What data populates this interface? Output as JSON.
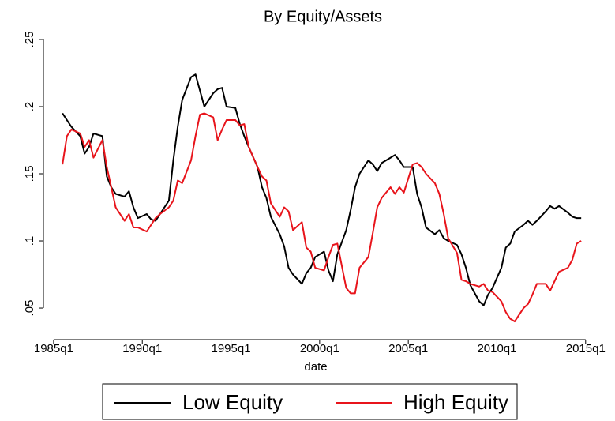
{
  "chart_data": {
    "type": "line",
    "title": "By Equity/Assets",
    "x_label": "date",
    "x": [
      102,
      103,
      104,
      106,
      107,
      108,
      109,
      111,
      112,
      113,
      114,
      116,
      117,
      118,
      119,
      121,
      122,
      123,
      124,
      126,
      127,
      128,
      129,
      131,
      132,
      133,
      134,
      136,
      137,
      138,
      139,
      141,
      142,
      143,
      144,
      146,
      147,
      148,
      149,
      151,
      152,
      153,
      154,
      156,
      157,
      158,
      159,
      161,
      162,
      163,
      164,
      166,
      167,
      168,
      169,
      171,
      172,
      173,
      174,
      176,
      177,
      178,
      179,
      181,
      182,
      183,
      184,
      186,
      187,
      188,
      189,
      191,
      192,
      193,
      194,
      196,
      197,
      198,
      199,
      201,
      202,
      203,
      204,
      206,
      207,
      208,
      209,
      211,
      212,
      213,
      214,
      216,
      217,
      218,
      219
    ],
    "series": [
      {
        "name": "Low Equity",
        "color": "#000000",
        "values": [
          0.195,
          0.19,
          0.185,
          0.178,
          0.165,
          0.17,
          0.18,
          0.178,
          0.148,
          0.14,
          0.135,
          0.133,
          0.137,
          0.125,
          0.117,
          0.12,
          0.116,
          0.115,
          0.12,
          0.13,
          0.16,
          0.185,
          0.205,
          0.222,
          0.224,
          0.212,
          0.2,
          0.21,
          0.213,
          0.214,
          0.2,
          0.199,
          0.187,
          0.178,
          0.17,
          0.155,
          0.14,
          0.132,
          0.118,
          0.105,
          0.096,
          0.08,
          0.075,
          0.068,
          0.076,
          0.08,
          0.088,
          0.092,
          0.078,
          0.07,
          0.09,
          0.108,
          0.123,
          0.14,
          0.15,
          0.16,
          0.157,
          0.152,
          0.158,
          0.162,
          0.164,
          0.16,
          0.155,
          0.155,
          0.135,
          0.125,
          0.11,
          0.105,
          0.108,
          0.102,
          0.1,
          0.097,
          0.09,
          0.08,
          0.067,
          0.055,
          0.052,
          0.06,
          0.065,
          0.08,
          0.095,
          0.098,
          0.107,
          0.112,
          0.115,
          0.112,
          0.115,
          0.122,
          0.126,
          0.124,
          0.126,
          0.121,
          0.118,
          0.117,
          0.117
        ]
      },
      {
        "name": "High Equity",
        "color": "#e8141b",
        "values": [
          0.157,
          0.178,
          0.183,
          0.18,
          0.17,
          0.175,
          0.162,
          0.175,
          0.155,
          0.14,
          0.125,
          0.115,
          0.12,
          0.11,
          0.11,
          0.107,
          0.112,
          0.117,
          0.12,
          0.125,
          0.13,
          0.145,
          0.143,
          0.16,
          0.178,
          0.194,
          0.195,
          0.192,
          0.175,
          0.183,
          0.19,
          0.19,
          0.186,
          0.187,
          0.17,
          0.155,
          0.148,
          0.145,
          0.128,
          0.118,
          0.125,
          0.122,
          0.108,
          0.114,
          0.095,
          0.092,
          0.08,
          0.078,
          0.088,
          0.097,
          0.098,
          0.065,
          0.061,
          0.061,
          0.08,
          0.088,
          0.106,
          0.125,
          0.132,
          0.14,
          0.135,
          0.14,
          0.136,
          0.157,
          0.158,
          0.155,
          0.15,
          0.143,
          0.135,
          0.12,
          0.102,
          0.091,
          0.071,
          0.07,
          0.068,
          0.066,
          0.068,
          0.063,
          0.062,
          0.055,
          0.047,
          0.042,
          0.04,
          0.05,
          0.053,
          0.06,
          0.068,
          0.068,
          0.063,
          0.07,
          0.077,
          0.08,
          0.086,
          0.098,
          0.1
        ]
      }
    ],
    "xlim": [
      97.7,
      223.6
    ],
    "xticks": [
      {
        "value": 100,
        "label": "1985q1"
      },
      {
        "value": 120,
        "label": "1990q1"
      },
      {
        "value": 140,
        "label": "1995q1"
      },
      {
        "value": 160,
        "label": "2000q1"
      },
      {
        "value": 180,
        "label": "2005q1"
      },
      {
        "value": 200,
        "label": "2010q1"
      },
      {
        "value": 220,
        "label": "2015q1"
      }
    ],
    "ylim": [
      0.0265,
      0.2588
    ],
    "yticks": [
      {
        "value": 0.05,
        "label": ".05"
      },
      {
        "value": 0.1,
        "label": ".1"
      },
      {
        "value": 0.15,
        "label": ".15"
      },
      {
        "value": 0.2,
        "label": ".2"
      },
      {
        "value": 0.25,
        "label": ".25"
      }
    ],
    "legend": "bottom"
  }
}
